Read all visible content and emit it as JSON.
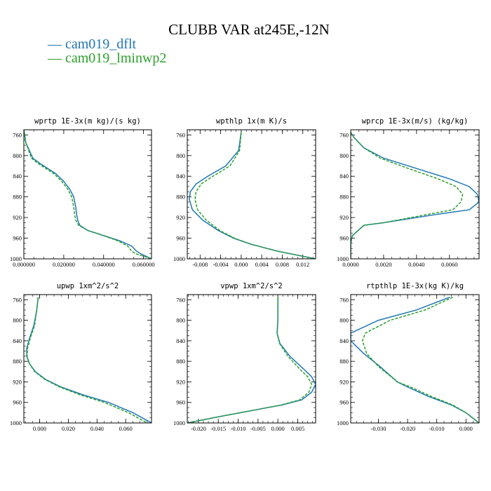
{
  "title": "CLUBB VAR at245E,-12N",
  "legend": [
    {
      "label": "— cam019_dflt",
      "color": "#1f77b4"
    },
    {
      "label": "— cam019_lminwp2",
      "color": "#2ca02c"
    }
  ],
  "chart_data": [
    {
      "type": "line",
      "title": "wprtp  1E-3x(m kg)/(s kg)",
      "xlim": [
        0.0,
        0.064
      ],
      "ylim": [
        1000,
        750
      ],
      "xticks": [
        0.0,
        0.02,
        0.04,
        0.06
      ],
      "xtick_labels": [
        "0.000000",
        "0.020000",
        "0.040000",
        "0.060000"
      ],
      "yticks": [
        760,
        800,
        840,
        880,
        920,
        960,
        1000
      ],
      "series": [
        {
          "name": "cam019_dflt",
          "color": "#1f77b4",
          "dash": "",
          "x": [
            0.0,
            0.0004,
            0.001,
            0.0045,
            0.008,
            0.012,
            0.016,
            0.02,
            0.023,
            0.025,
            0.026,
            0.0265,
            0.027,
            0.028,
            0.032,
            0.04,
            0.048,
            0.054,
            0.0565,
            0.0585,
            0.064
          ],
          "y": [
            750,
            760,
            775,
            805,
            815,
            825,
            835,
            850,
            865,
            880,
            900,
            915,
            925,
            935,
            945,
            955,
            965,
            975,
            985,
            990,
            1000
          ]
        },
        {
          "name": "cam019_lminwp2",
          "color": "#2ca02c",
          "dash": "4,2",
          "x": [
            0.0,
            0.0004,
            0.001,
            0.0038,
            0.007,
            0.011,
            0.015,
            0.019,
            0.022,
            0.024,
            0.025,
            0.0255,
            0.026,
            0.0275,
            0.032,
            0.04,
            0.047,
            0.052,
            0.054,
            0.056,
            0.064
          ],
          "y": [
            750,
            760,
            775,
            805,
            815,
            825,
            835,
            850,
            865,
            880,
            900,
            915,
            925,
            935,
            945,
            955,
            965,
            975,
            985,
            990,
            1000
          ]
        }
      ]
    },
    {
      "type": "line",
      "title": "wpthlp  1x(m K)/s",
      "xlim": [
        -0.0105,
        0.0145
      ],
      "ylim": [
        1000,
        750
      ],
      "xticks": [
        -0.008,
        -0.004,
        0.0,
        0.004,
        0.008,
        0.012
      ],
      "xtick_labels": [
        "-0.008",
        "-0.004",
        "0.000",
        "0.004",
        "0.008",
        "0.012"
      ],
      "yticks": [
        760,
        800,
        840,
        880,
        920,
        960,
        1000
      ],
      "series": [
        {
          "name": "cam019_dflt",
          "color": "#1f77b4",
          "dash": "",
          "x": [
            0.0,
            -0.0005,
            -0.003,
            -0.0065,
            -0.0088,
            -0.0099,
            -0.0101,
            -0.0095,
            -0.0075,
            -0.0045,
            -0.0015,
            0.002,
            0.007,
            0.0145
          ],
          "y": [
            755,
            790,
            820,
            840,
            855,
            870,
            885,
            905,
            925,
            945,
            960,
            972,
            985,
            1000
          ]
        },
        {
          "name": "cam019_lminwp2",
          "color": "#2ca02c",
          "dash": "4,2",
          "x": [
            0.0,
            -0.0003,
            -0.0022,
            -0.0055,
            -0.0078,
            -0.0088,
            -0.009,
            -0.0085,
            -0.0068,
            -0.0042,
            -0.0013,
            0.002,
            0.007,
            0.0145
          ],
          "y": [
            755,
            790,
            820,
            840,
            855,
            870,
            885,
            905,
            925,
            945,
            960,
            972,
            985,
            1000
          ]
        }
      ]
    },
    {
      "type": "line",
      "title": "wprcp  1E-3x(m/s) (kg/kg)",
      "xlim": [
        0.0,
        0.0078
      ],
      "ylim": [
        1000,
        750
      ],
      "xticks": [
        0.0,
        0.002,
        0.004,
        0.006
      ],
      "xtick_labels": [
        "0.0000",
        "0.0020",
        "0.0040",
        "0.0060"
      ],
      "yticks": [
        760,
        800,
        840,
        880,
        920,
        960,
        1000
      ],
      "series": [
        {
          "name": "cam019_dflt",
          "color": "#1f77b4",
          "dash": "",
          "x": [
            0.0,
            0.0002,
            0.0008,
            0.002,
            0.004,
            0.006,
            0.0072,
            0.0077,
            0.0078,
            0.0072,
            0.005,
            0.002,
            0.0008,
            0.0001,
            0.0,
            0.0
          ],
          "y": [
            755,
            765,
            785,
            805,
            825,
            845,
            860,
            875,
            890,
            905,
            915,
            930,
            935,
            955,
            970,
            1000
          ]
        },
        {
          "name": "cam019_lminwp2",
          "color": "#2ca02c",
          "dash": "4,2",
          "x": [
            0.0,
            0.0002,
            0.0008,
            0.0018,
            0.0035,
            0.0053,
            0.0064,
            0.0068,
            0.0067,
            0.0062,
            0.0045,
            0.002,
            0.0008,
            0.0001,
            0.0,
            0.0
          ],
          "y": [
            755,
            765,
            785,
            805,
            825,
            845,
            860,
            875,
            890,
            905,
            915,
            930,
            935,
            955,
            970,
            1000
          ]
        }
      ]
    },
    {
      "type": "line",
      "title": "upwp  1xm^2/s^2",
      "xlim": [
        -0.011,
        0.078
      ],
      "ylim": [
        1000,
        750
      ],
      "xticks": [
        0.0,
        0.02,
        0.04,
        0.06
      ],
      "xtick_labels": [
        "0.000",
        "0.020",
        "0.040",
        "0.060"
      ],
      "yticks": [
        760,
        800,
        840,
        880,
        920,
        960,
        1000
      ],
      "series": [
        {
          "name": "cam019_dflt",
          "color": "#1f77b4",
          "dash": "",
          "x": [
            -0.001,
            -0.002,
            -0.004,
            -0.007,
            -0.009,
            -0.009,
            -0.007,
            -0.003,
            0.004,
            0.015,
            0.03,
            0.048,
            0.065,
            0.078
          ],
          "y": [
            755,
            780,
            810,
            835,
            855,
            870,
            885,
            900,
            915,
            930,
            945,
            960,
            980,
            1000
          ]
        },
        {
          "name": "cam019_lminwp2",
          "color": "#2ca02c",
          "dash": "4,2",
          "x": [
            -0.001,
            -0.002,
            -0.0035,
            -0.0065,
            -0.0085,
            -0.0087,
            -0.007,
            -0.0035,
            0.0035,
            0.014,
            0.028,
            0.045,
            0.062,
            0.075
          ],
          "y": [
            755,
            780,
            810,
            835,
            855,
            870,
            885,
            900,
            915,
            930,
            945,
            960,
            980,
            1000
          ]
        }
      ]
    },
    {
      "type": "line",
      "title": "vpwp  1xm^2/s^2",
      "xlim": [
        -0.0228,
        0.0095
      ],
      "ylim": [
        1000,
        750
      ],
      "xticks": [
        -0.02,
        -0.015,
        -0.01,
        -0.005,
        0.0,
        0.005
      ],
      "xtick_labels": [
        "-0.020",
        "-0.015",
        "-0.010",
        "-0.005",
        "0.000",
        "0.005"
      ],
      "yticks": [
        760,
        800,
        840,
        880,
        920,
        960,
        1000
      ],
      "series": [
        {
          "name": "cam019_dflt",
          "color": "#1f77b4",
          "dash": "",
          "x": [
            0.0,
            0.0,
            -0.0002,
            0.0005,
            0.003,
            0.0065,
            0.0085,
            0.0095,
            0.0085,
            0.006,
            0.001,
            -0.006,
            -0.015,
            -0.0228
          ],
          "y": [
            755,
            800,
            825,
            845,
            870,
            895,
            910,
            925,
            940,
            955,
            965,
            975,
            988,
            1000
          ]
        },
        {
          "name": "cam019_lminwp2",
          "color": "#2ca02c",
          "dash": "4,2",
          "x": [
            0.0,
            0.0,
            -0.0002,
            0.0004,
            0.0025,
            0.0055,
            0.0075,
            0.0085,
            0.0078,
            0.0055,
            0.0008,
            -0.006,
            -0.015,
            -0.0228
          ],
          "y": [
            755,
            800,
            825,
            845,
            870,
            895,
            910,
            925,
            940,
            955,
            965,
            975,
            988,
            1000
          ]
        }
      ]
    },
    {
      "type": "line",
      "title": "rtpthlp  1E-3x(kg K)/kg",
      "xlim": [
        -0.0395,
        0.0045
      ],
      "ylim": [
        1000,
        750
      ],
      "xticks": [
        -0.03,
        -0.02,
        -0.01,
        0.0
      ],
      "xtick_labels": [
        "-0.030",
        "-0.020",
        "-0.010",
        "0.000"
      ],
      "yticks": [
        760,
        800,
        840,
        880,
        920,
        960,
        1000
      ],
      "series": [
        {
          "name": "cam019_dflt",
          "color": "#1f77b4",
          "dash": "",
          "x": [
            -0.0055,
            -0.017,
            -0.03,
            -0.0395,
            -0.0395,
            -0.035,
            -0.0295,
            -0.0235,
            -0.02,
            -0.013,
            -0.005,
            0.0,
            0.0045
          ],
          "y": [
            755,
            780,
            800,
            825,
            840,
            865,
            890,
            920,
            930,
            948,
            965,
            980,
            1000
          ]
        },
        {
          "name": "cam019_lminwp2",
          "color": "#2ca02c",
          "dash": "4,2",
          "x": [
            -0.0045,
            -0.014,
            -0.026,
            -0.0345,
            -0.0355,
            -0.034,
            -0.03,
            -0.0235,
            -0.019,
            -0.012,
            -0.0045,
            0.0,
            0.0045
          ],
          "y": [
            755,
            780,
            800,
            825,
            840,
            865,
            890,
            920,
            930,
            948,
            965,
            980,
            1000
          ]
        }
      ]
    }
  ]
}
